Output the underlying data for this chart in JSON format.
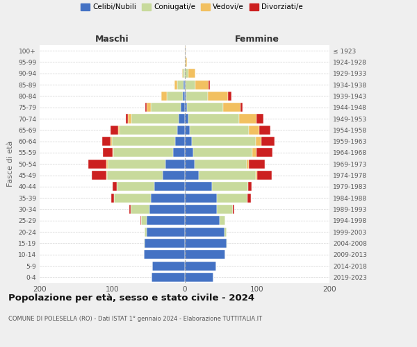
{
  "age_groups": [
    "0-4",
    "5-9",
    "10-14",
    "15-19",
    "20-24",
    "25-29",
    "30-34",
    "35-39",
    "40-44",
    "45-49",
    "50-54",
    "55-59",
    "60-64",
    "65-69",
    "70-74",
    "75-79",
    "80-84",
    "85-89",
    "90-94",
    "95-99",
    "100+"
  ],
  "birth_years": [
    "2019-2023",
    "2014-2018",
    "2009-2013",
    "2004-2008",
    "1999-2003",
    "1994-1998",
    "1989-1993",
    "1984-1988",
    "1979-1983",
    "1974-1978",
    "1969-1973",
    "1964-1968",
    "1959-1963",
    "1954-1958",
    "1949-1953",
    "1944-1948",
    "1939-1943",
    "1934-1938",
    "1929-1933",
    "1924-1928",
    "≤ 1923"
  ],
  "colors": {
    "celibe": "#4472C4",
    "coniugato": "#C8DA9C",
    "vedovo": "#F2C060",
    "divorziato": "#CC2020"
  },
  "maschi": {
    "celibe": [
      46,
      45,
      56,
      55,
      52,
      52,
      48,
      47,
      42,
      30,
      26,
      16,
      13,
      10,
      8,
      5,
      2,
      1,
      0,
      0,
      0
    ],
    "coniugato": [
      0,
      0,
      0,
      1,
      3,
      8,
      26,
      50,
      52,
      77,
      80,
      82,
      87,
      80,
      65,
      42,
      22,
      9,
      2,
      0,
      0
    ],
    "vedovo": [
      0,
      0,
      0,
      0,
      0,
      0,
      0,
      0,
      0,
      1,
      2,
      1,
      2,
      2,
      5,
      5,
      8,
      4,
      1,
      0,
      0
    ],
    "divorziato": [
      0,
      0,
      0,
      0,
      0,
      1,
      2,
      4,
      5,
      20,
      25,
      14,
      12,
      10,
      3,
      2,
      0,
      0,
      0,
      0,
      0
    ]
  },
  "femmine": {
    "celibe": [
      40,
      44,
      56,
      58,
      55,
      48,
      45,
      45,
      38,
      20,
      14,
      12,
      10,
      7,
      5,
      3,
      2,
      1,
      0,
      0,
      0
    ],
    "coniugato": [
      0,
      0,
      0,
      1,
      3,
      8,
      22,
      42,
      50,
      78,
      72,
      82,
      88,
      82,
      70,
      50,
      30,
      14,
      5,
      1,
      0
    ],
    "vedovo": [
      0,
      0,
      0,
      0,
      0,
      0,
      0,
      0,
      0,
      2,
      3,
      5,
      8,
      14,
      24,
      24,
      28,
      18,
      10,
      2,
      1
    ],
    "divorziato": [
      0,
      0,
      0,
      0,
      0,
      0,
      2,
      5,
      5,
      20,
      22,
      22,
      18,
      15,
      10,
      3,
      5,
      2,
      0,
      0,
      0
    ]
  },
  "title_main": "Popolazione per età, sesso e stato civile - 2024",
  "title_sub": "COMUNE DI POLESELLA (RO) - Dati ISTAT 1° gennaio 2024 - Elaborazione TUTTITALIA.IT",
  "label_maschi": "Maschi",
  "label_femmine": "Femmine",
  "ylabel_left": "Fasce di età",
  "xlim": 200,
  "bg_color": "#efefef",
  "plot_bg": "#ffffff",
  "legend_labels": [
    "Celibi/Nubili",
    "Coniugati/e",
    "Vedovi/e",
    "Divorziati/e"
  ]
}
